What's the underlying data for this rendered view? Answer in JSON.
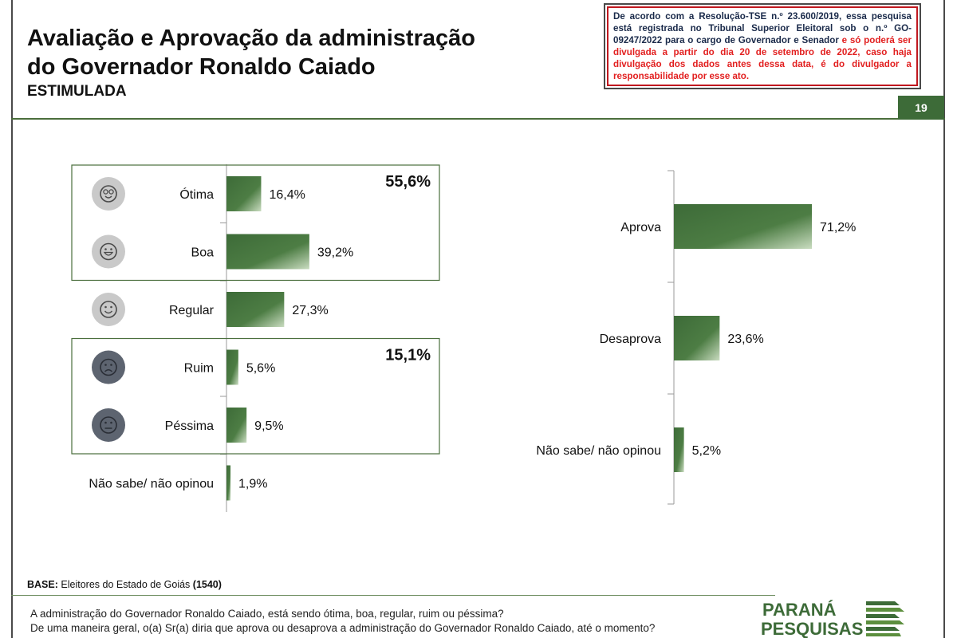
{
  "header": {
    "title_line1": "Avaliação e Aprovação da administração",
    "title_line2": "do Governador Ronaldo Caiado",
    "subtitle": "ESTIMULADA",
    "page_number": "19"
  },
  "notice": {
    "part1": "De acordo com a Resolução-TSE n.º 23.600/2019, essa pesquisa está registrada no Tribunal Superior Eleitoral sob o n.º GO-09247/2022 para o cargo de Governador e Senador",
    "part2": "e só poderá ser divulgada a partir do dia 20 de setembro de 2022, caso haja divulgação dos dados antes dessa data, é do divulgador a responsabilidade por esse ato."
  },
  "chart_data": [
    {
      "type": "bar",
      "orientation": "horizontal",
      "categories": [
        "Ótima",
        "Boa",
        "Regular",
        "Ruim",
        "Péssima",
        "Não sabe/ não opinou"
      ],
      "values": [
        16.4,
        39.2,
        27.3,
        5.6,
        9.5,
        1.9
      ],
      "value_labels": [
        "16,4%",
        "39,2%",
        "27,3%",
        "5,6%",
        "9,5%",
        "1,9%"
      ],
      "icons": [
        "star-eyes-face-icon",
        "grinning-face-icon",
        "smiling-face-icon",
        "frowning-face-icon",
        "neutral-face-icon",
        ""
      ],
      "groups": [
        {
          "label": "55,6%",
          "members": [
            "Ótima",
            "Boa"
          ]
        },
        {
          "label": "15,1%",
          "members": [
            "Ruim",
            "Péssima"
          ]
        }
      ],
      "bar_color": "#3d6b38"
    },
    {
      "type": "bar",
      "orientation": "horizontal",
      "categories": [
        "Aprova",
        "Desaprova",
        "Não sabe/ não opinou"
      ],
      "values": [
        71.2,
        23.6,
        5.2
      ],
      "value_labels": [
        "71,2%",
        "23,6%",
        "5,2%"
      ],
      "bar_color": "#3d6b38"
    }
  ],
  "footer": {
    "base_label": "BASE:",
    "base_text": "Eleitores do Estado de Goiás",
    "base_count": "(1540)",
    "question1": "A administração do Governador Ronaldo Caiado, está sendo ótima, boa, regular, ruim ou péssima?",
    "question2": "De uma maneira geral, o(a) Sr(a) diria que aprova ou desaprova a administração do Governador Ronaldo Caiado, até o momento?",
    "logo_line1": "PARANÁ",
    "logo_line2": "PESQUISAS"
  }
}
